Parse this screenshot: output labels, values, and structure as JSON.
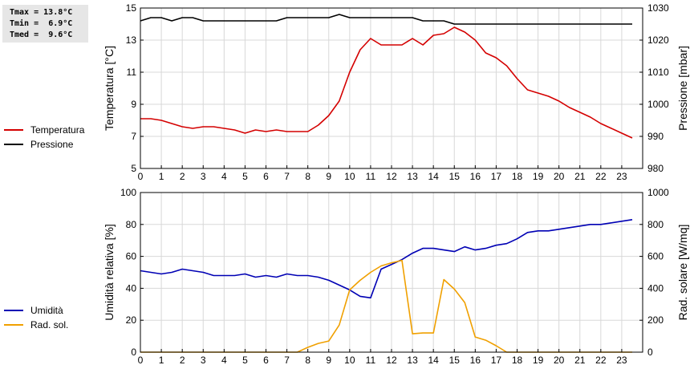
{
  "stats": [
    {
      "label": "Tmax",
      "sep": " = ",
      "value": "13.8°C"
    },
    {
      "label": "Tmin",
      "sep": " =  ",
      "value": "6.9°C"
    },
    {
      "label": "Tmed",
      "sep": " =  ",
      "value": "9.6°C"
    }
  ],
  "colors": {
    "temperatura": "#d40000",
    "pressione": "#000000",
    "umidita": "#0000b4",
    "rad_sol": "#f0a000",
    "grid": "#d8d8d8"
  },
  "chart_data": [
    {
      "type": "line",
      "xlim": [
        0,
        24
      ],
      "x_ticks": [
        0,
        1,
        2,
        3,
        4,
        5,
        6,
        7,
        8,
        9,
        10,
        11,
        12,
        13,
        14,
        15,
        16,
        17,
        18,
        19,
        20,
        21,
        22,
        23
      ],
      "ylabel": "Temperatura [°C]",
      "y2label": "Pressione [mbar]",
      "ylim": [
        5,
        15
      ],
      "y_ticks": [
        5,
        7,
        9,
        11,
        13,
        15
      ],
      "y2lim": [
        980,
        1030
      ],
      "y2_ticks": [
        980,
        990,
        1000,
        1010,
        1020,
        1030
      ],
      "grid": true,
      "legend_position": "left",
      "series": [
        {
          "name": "Temperatura",
          "axis": "left",
          "color": "#d40000",
          "x": [
            0,
            0.5,
            1,
            1.5,
            2,
            2.5,
            3,
            3.5,
            4,
            4.5,
            5,
            5.5,
            6,
            6.5,
            7,
            7.5,
            8,
            8.5,
            9,
            9.5,
            10,
            10.5,
            11,
            11.5,
            12,
            12.5,
            13,
            13.5,
            14,
            14.5,
            15,
            15.5,
            16,
            16.5,
            17,
            17.5,
            18,
            18.5,
            19,
            19.5,
            20,
            20.5,
            21,
            21.5,
            22,
            22.5,
            23,
            23.5
          ],
          "y": [
            8.1,
            8.1,
            8.0,
            7.8,
            7.6,
            7.5,
            7.6,
            7.6,
            7.5,
            7.4,
            7.2,
            7.4,
            7.3,
            7.4,
            7.3,
            7.3,
            7.3,
            7.7,
            8.3,
            9.2,
            11.0,
            12.4,
            13.1,
            12.7,
            12.7,
            12.7,
            13.1,
            12.7,
            13.3,
            13.4,
            13.8,
            13.5,
            13.0,
            12.2,
            11.9,
            11.4,
            10.6,
            9.9,
            9.7,
            9.5,
            9.2,
            8.8,
            8.5,
            8.2,
            7.8,
            7.5,
            7.2,
            6.9
          ]
        },
        {
          "name": "Pressione",
          "axis": "right",
          "color": "#000000",
          "x": [
            0,
            0.5,
            1,
            1.5,
            2,
            2.5,
            3,
            3.5,
            4,
            4.5,
            5,
            5.5,
            6,
            6.5,
            7,
            7.5,
            8,
            8.5,
            9,
            9.5,
            10,
            10.5,
            11,
            11.5,
            12,
            12.5,
            13,
            13.5,
            14,
            14.5,
            15,
            15.5,
            16,
            16.5,
            17,
            17.5,
            18,
            18.5,
            19,
            19.5,
            20,
            20.5,
            21,
            21.5,
            22,
            22.5,
            23,
            23.5
          ],
          "y": [
            1026,
            1027,
            1027,
            1026,
            1027,
            1027,
            1026,
            1026,
            1026,
            1026,
            1026,
            1026,
            1026,
            1026,
            1027,
            1027,
            1027,
            1027,
            1027,
            1028,
            1027,
            1027,
            1027,
            1027,
            1027,
            1027,
            1027,
            1026,
            1026,
            1026,
            1025,
            1025,
            1025,
            1025,
            1025,
            1025,
            1025,
            1025,
            1025,
            1025,
            1025,
            1025,
            1025,
            1025,
            1025,
            1025,
            1025,
            1025
          ]
        }
      ]
    },
    {
      "type": "line",
      "xlim": [
        0,
        24
      ],
      "x_ticks": [
        0,
        1,
        2,
        3,
        4,
        5,
        6,
        7,
        8,
        9,
        10,
        11,
        12,
        13,
        14,
        15,
        16,
        17,
        18,
        19,
        20,
        21,
        22,
        23
      ],
      "ylabel": "Umidità relativa [%]",
      "y2label": "Rad. solare [W/mq]",
      "ylim": [
        0,
        100
      ],
      "y_ticks": [
        0,
        20,
        40,
        60,
        80,
        100
      ],
      "y2lim": [
        0,
        1000
      ],
      "y2_ticks": [
        0,
        200,
        400,
        600,
        800,
        1000
      ],
      "grid": true,
      "legend_position": "left",
      "series": [
        {
          "name": "Umidità",
          "axis": "left",
          "color": "#0000b4",
          "x": [
            0,
            0.5,
            1,
            1.5,
            2,
            2.5,
            3,
            3.5,
            4,
            4.5,
            5,
            5.5,
            6,
            6.5,
            7,
            7.5,
            8,
            8.5,
            9,
            9.5,
            10,
            10.5,
            11,
            11.5,
            12,
            12.5,
            13,
            13.5,
            14,
            14.5,
            15,
            15.5,
            16,
            16.5,
            17,
            17.5,
            18,
            18.5,
            19,
            19.5,
            20,
            20.5,
            21,
            21.5,
            22,
            22.5,
            23,
            23.5
          ],
          "y": [
            51,
            50,
            49,
            50,
            52,
            51,
            50,
            48,
            48,
            48,
            49,
            47,
            48,
            47,
            49,
            48,
            48,
            47,
            45,
            42,
            39,
            35,
            34,
            52,
            55,
            58,
            62,
            65,
            65,
            64,
            63,
            66,
            64,
            65,
            67,
            68,
            71,
            75,
            76,
            76,
            77,
            78,
            79,
            80,
            80,
            81,
            82,
            83
          ]
        },
        {
          "name": "Rad. sol.",
          "axis": "right",
          "color": "#f0a000",
          "x": [
            0,
            1,
            2,
            3,
            4,
            5,
            6,
            7,
            7.5,
            8,
            8.5,
            9,
            9.5,
            10,
            10.5,
            11,
            11.5,
            12,
            12.5,
            13,
            13.5,
            14,
            14.5,
            15,
            15.5,
            16,
            16.5,
            17,
            17.5,
            18,
            19,
            20,
            21,
            22,
            23,
            23.5
          ],
          "y": [
            0,
            0,
            0,
            0,
            0,
            0,
            0,
            0,
            0,
            30,
            55,
            70,
            170,
            390,
            450,
            500,
            540,
            560,
            575,
            115,
            120,
            120,
            455,
            395,
            310,
            95,
            75,
            40,
            0,
            0,
            0,
            0,
            0,
            0,
            0,
            0
          ]
        }
      ]
    }
  ]
}
